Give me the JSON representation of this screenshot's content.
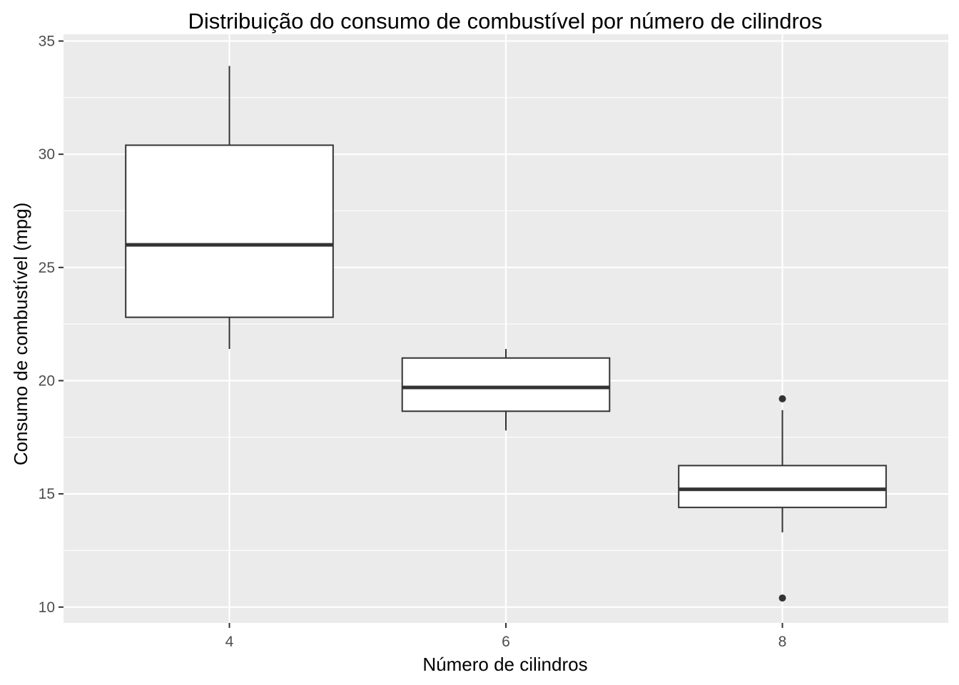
{
  "chart_data": {
    "type": "boxplot",
    "title": "Distribuição do consumo de combustível por número de cilindros",
    "xlabel": "Número de cilindros",
    "ylabel": "Consumo de combustível (mpg)",
    "categories": [
      "4",
      "6",
      "8"
    ],
    "ylim": [
      9.3,
      35.3
    ],
    "yticks": [
      10,
      15,
      20,
      25,
      30,
      35
    ],
    "grid": true,
    "legend": "none",
    "colors": {
      "panel": "#ebebeb",
      "grid": "#ffffff",
      "box_fill": "#ffffff",
      "box_line": "#333333",
      "tick_text": "#4d4d4d"
    },
    "boxes": [
      {
        "category": "4",
        "lower_whisker": 21.4,
        "q1": 22.8,
        "median": 26.0,
        "q3": 30.4,
        "upper_whisker": 33.9,
        "outliers": []
      },
      {
        "category": "6",
        "lower_whisker": 17.8,
        "q1": 18.65,
        "median": 19.7,
        "q3": 21.0,
        "upper_whisker": 21.4,
        "outliers": []
      },
      {
        "category": "8",
        "lower_whisker": 13.3,
        "q1": 14.4,
        "median": 15.2,
        "q3": 16.25,
        "upper_whisker": 18.7,
        "outliers": [
          10.4,
          19.2
        ]
      }
    ]
  }
}
